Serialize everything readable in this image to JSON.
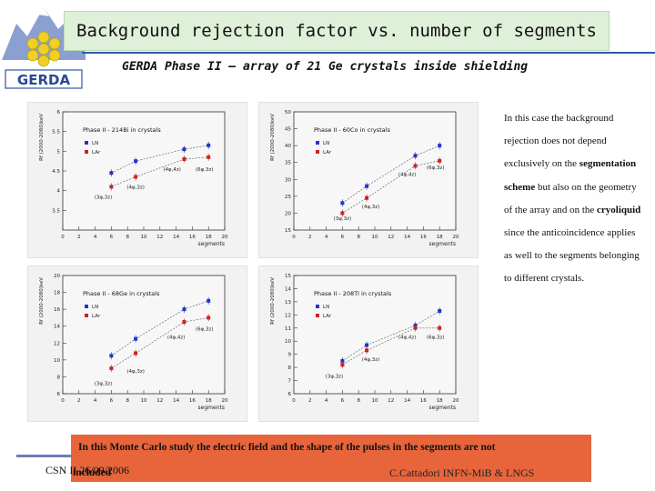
{
  "header": {
    "title": "Background rejection factor vs. number of segments",
    "subtitle": "GERDA Phase II – array of 21 Ge crystals inside shielding"
  },
  "logo": {
    "text": "GERDA"
  },
  "side_text": {
    "p1": "In this case the background rejection does not depend exclusively on the",
    "b1": "segmentation scheme",
    "p2": "but also on the geometry of the array and on the",
    "b2": "cryoliquid",
    "p3": "since the anticoincidence applies as well to the segments belonging to different crystals."
  },
  "footer": {
    "note": "In this Monte Carlo study the electric field and the shape of the pulses in the segments are not",
    "note2": "included",
    "date": "CSN II 26/09/2006",
    "author": "C.Cattadori INFN-MiB & LNGS"
  },
  "colors": {
    "ln": "#2233cc",
    "lar": "#cc2222"
  },
  "chart_data": [
    {
      "type": "scatter",
      "title": "Phase II - 214Bi in crystals",
      "xlabel": "segments",
      "ylabel": "Rf (2000-2080)keV",
      "xlim": [
        0,
        20
      ],
      "ylim": [
        3,
        6
      ],
      "xticks": [
        0,
        2,
        4,
        6,
        8,
        10,
        12,
        14,
        16,
        18,
        20
      ],
      "yticks": [
        3.5,
        4,
        4.5,
        5,
        5.5,
        6
      ],
      "legend": [
        "LN",
        "LAr"
      ],
      "series": [
        {
          "name": "LN",
          "x": [
            6,
            9,
            15,
            18
          ],
          "y": [
            4.45,
            4.75,
            5.05,
            5.15
          ]
        },
        {
          "name": "LAr",
          "x": [
            6,
            9,
            15,
            18
          ],
          "y": [
            4.1,
            4.35,
            4.8,
            4.85
          ]
        }
      ],
      "annotations": [
        {
          "text": "(3φ,3z)",
          "x": 5,
          "y": 3.8
        },
        {
          "text": "(4φ,3z)",
          "x": 9,
          "y": 4.05
        },
        {
          "text": "(4φ,4z)",
          "x": 13.5,
          "y": 4.5
        },
        {
          "text": "(6φ,3z)",
          "x": 17.5,
          "y": 4.5
        }
      ]
    },
    {
      "type": "scatter",
      "title": "Phase II - 60Co in crystals",
      "xlabel": "segments",
      "ylabel": "Rf (2000-2080)keV",
      "xlim": [
        0,
        20
      ],
      "ylim": [
        15,
        50
      ],
      "xticks": [
        0,
        2,
        4,
        6,
        8,
        10,
        12,
        14,
        16,
        18,
        20
      ],
      "yticks": [
        15,
        20,
        25,
        30,
        35,
        40,
        45,
        50
      ],
      "legend": [
        "LN",
        "LAr"
      ],
      "series": [
        {
          "name": "LN",
          "x": [
            6,
            9,
            15,
            18
          ],
          "y": [
            23,
            28,
            37,
            40
          ]
        },
        {
          "name": "LAr",
          "x": [
            6,
            9,
            15,
            18
          ],
          "y": [
            20,
            24.5,
            34,
            35.5
          ]
        }
      ],
      "annotations": [
        {
          "text": "(3φ,3z)",
          "x": 6,
          "y": 18
        },
        {
          "text": "(4φ,3z)",
          "x": 9.5,
          "y": 21.5
        },
        {
          "text": "(4φ,4z)",
          "x": 14,
          "y": 31
        },
        {
          "text": "(6φ,3z)",
          "x": 17.5,
          "y": 33
        }
      ]
    },
    {
      "type": "scatter",
      "title": "Phase II - 68Ge in crystals",
      "xlabel": "segments",
      "ylabel": "Rf (2000-2080)keV",
      "xlim": [
        0,
        20
      ],
      "ylim": [
        6,
        20
      ],
      "xticks": [
        0,
        2,
        4,
        6,
        8,
        10,
        12,
        14,
        16,
        18,
        20
      ],
      "yticks": [
        6,
        8,
        10,
        12,
        14,
        16,
        18,
        20
      ],
      "legend": [
        "LN",
        "LAr"
      ],
      "series": [
        {
          "name": "LN",
          "x": [
            6,
            9,
            15,
            18
          ],
          "y": [
            10.5,
            12.5,
            16,
            17
          ]
        },
        {
          "name": "LAr",
          "x": [
            6,
            9,
            15,
            18
          ],
          "y": [
            9,
            10.8,
            14.5,
            15
          ]
        }
      ],
      "annotations": [
        {
          "text": "(3φ,3z)",
          "x": 5,
          "y": 7
        },
        {
          "text": "(4φ,3z)",
          "x": 9,
          "y": 8.5
        },
        {
          "text": "(4φ,4z)",
          "x": 14,
          "y": 12.5
        },
        {
          "text": "(6φ,3z)",
          "x": 17.5,
          "y": 13.5
        }
      ]
    },
    {
      "type": "scatter",
      "title": "Phase II - 208Tl in crystals",
      "xlabel": "segments",
      "ylabel": "Rf (2000-2080)keV",
      "xlim": [
        0,
        20
      ],
      "ylim": [
        6,
        15
      ],
      "xticks": [
        0,
        2,
        4,
        6,
        8,
        10,
        12,
        14,
        16,
        18,
        20
      ],
      "yticks": [
        6,
        7,
        8,
        9,
        10,
        11,
        12,
        13,
        14,
        15
      ],
      "legend": [
        "LN",
        "LAr"
      ],
      "series": [
        {
          "name": "LN",
          "x": [
            6,
            9,
            15,
            18
          ],
          "y": [
            8.5,
            9.7,
            11.2,
            12.3
          ]
        },
        {
          "name": "LAr",
          "x": [
            6,
            9,
            15,
            18
          ],
          "y": [
            8.2,
            9.3,
            11.0,
            11.0
          ]
        }
      ],
      "annotations": [
        {
          "text": "(3φ,3z)",
          "x": 5,
          "y": 7.2
        },
        {
          "text": "(4φ,3z)",
          "x": 9.5,
          "y": 8.5
        },
        {
          "text": "(4φ,4z)",
          "x": 14,
          "y": 10.2
        },
        {
          "text": "(6φ,3z)",
          "x": 17.5,
          "y": 10.2
        }
      ]
    }
  ]
}
